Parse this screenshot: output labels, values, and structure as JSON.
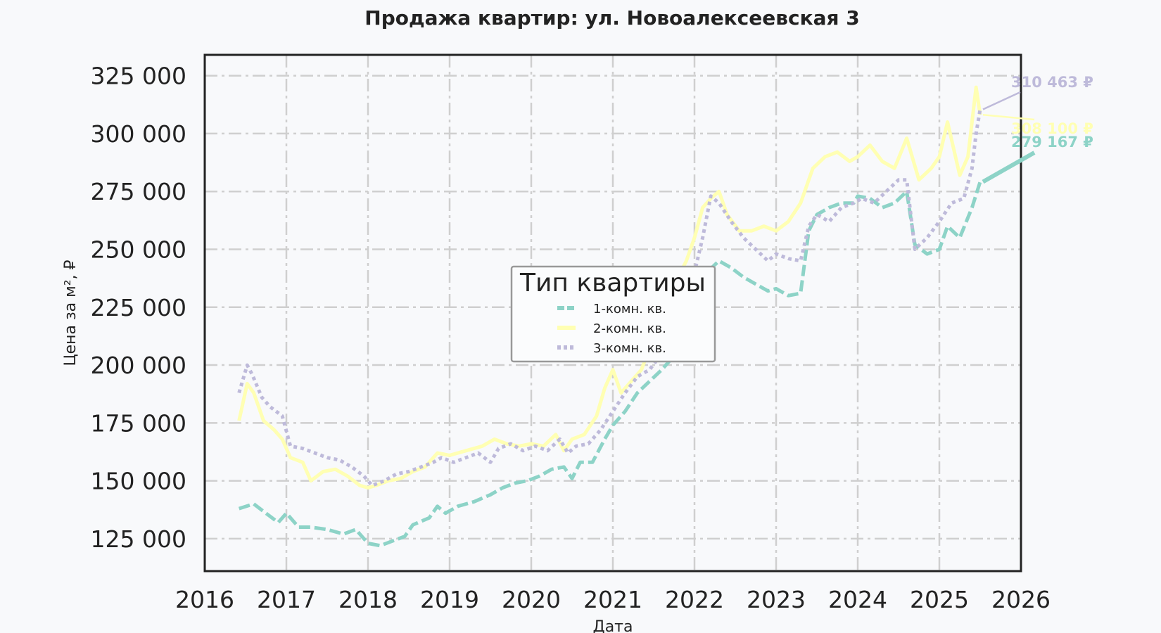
{
  "chart_data": {
    "type": "line",
    "title": "Продажа квартир: ул. Новоалексеевская 3",
    "xlabel": "Дата",
    "ylabel": "Цена за м², ₽",
    "xlim": [
      2016,
      2026
    ],
    "ylim": [
      111000,
      334000
    ],
    "x_ticks": [
      "2016",
      "2017",
      "2018",
      "2019",
      "2020",
      "2021",
      "2022",
      "2023",
      "2024",
      "2025",
      "2026"
    ],
    "y_ticks": [
      "125 000",
      "150 000",
      "175 000",
      "200 000",
      "225 000",
      "250 000",
      "275 000",
      "300 000",
      "325 000"
    ],
    "grid": true,
    "legend": {
      "title": "Тип квартиры",
      "position": "center",
      "entries": [
        "1-комн. кв.",
        "2-комн. кв.",
        "3-комн. кв."
      ]
    },
    "series": [
      {
        "name": "1-комн. кв.",
        "color": "#8dd3c7",
        "dash": "dashed",
        "end_label": "279 167 ₽",
        "x": [
          2016.42,
          2016.6,
          2016.75,
          2016.9,
          2017.0,
          2017.15,
          2017.3,
          2017.5,
          2017.7,
          2017.85,
          2018.0,
          2018.15,
          2018.3,
          2018.45,
          2018.55,
          2018.75,
          2018.85,
          2018.95,
          2019.1,
          2019.3,
          2019.5,
          2019.65,
          2019.8,
          2019.95,
          2020.1,
          2020.25,
          2020.4,
          2020.5,
          2020.6,
          2020.75,
          2020.9,
          2021.0,
          2021.15,
          2021.3,
          2021.45,
          2021.6,
          2021.75,
          2021.85,
          2021.95,
          2022.05,
          2022.15,
          2022.3,
          2022.45,
          2022.6,
          2022.75,
          2022.9,
          2023.0,
          2023.15,
          2023.3,
          2023.4,
          2023.5,
          2023.65,
          2023.8,
          2023.95,
          2024.0,
          2024.15,
          2024.3,
          2024.45,
          2024.6,
          2024.7,
          2024.85,
          2025.0,
          2025.1,
          2025.25,
          2025.4,
          2025.5
        ],
        "y": [
          138000,
          140000,
          136000,
          132000,
          136000,
          130000,
          130000,
          129000,
          127000,
          129000,
          123000,
          122000,
          124000,
          126000,
          131000,
          134000,
          139000,
          136000,
          139000,
          141000,
          144000,
          147000,
          149000,
          150000,
          152000,
          155000,
          156000,
          151000,
          158000,
          158000,
          168000,
          174000,
          180000,
          188000,
          193000,
          198000,
          204000,
          213000,
          222000,
          230000,
          240000,
          245000,
          242000,
          238000,
          235000,
          232000,
          233000,
          230000,
          231000,
          258000,
          265000,
          268000,
          270000,
          270000,
          273000,
          272000,
          268000,
          270000,
          275000,
          252000,
          248000,
          250000,
          260000,
          255000,
          268000,
          279167
        ]
      },
      {
        "name": "2-комн. кв.",
        "color": "#ffffb3",
        "dash": "solid",
        "end_label": "308 100 ₽",
        "x": [
          2016.42,
          2016.52,
          2016.6,
          2016.72,
          2016.85,
          2016.95,
          2017.05,
          2017.2,
          2017.3,
          2017.45,
          2017.6,
          2017.75,
          2017.9,
          2018.0,
          2018.1,
          2018.25,
          2018.4,
          2018.55,
          2018.7,
          2018.85,
          2019.0,
          2019.2,
          2019.4,
          2019.55,
          2019.7,
          2019.85,
          2020.0,
          2020.15,
          2020.3,
          2020.4,
          2020.5,
          2020.65,
          2020.8,
          2020.9,
          2021.0,
          2021.1,
          2021.2,
          2021.35,
          2021.5,
          2021.65,
          2021.8,
          2021.9,
          2022.0,
          2022.1,
          2022.2,
          2022.3,
          2022.4,
          2022.55,
          2022.7,
          2022.85,
          2023.0,
          2023.15,
          2023.3,
          2023.45,
          2023.6,
          2023.75,
          2023.9,
          2024.0,
          2024.15,
          2024.3,
          2024.45,
          2024.6,
          2024.75,
          2024.9,
          2025.0,
          2025.1,
          2025.25,
          2025.35,
          2025.45,
          2025.5
        ],
        "y": [
          176000,
          192000,
          188000,
          176000,
          172000,
          168000,
          160000,
          158000,
          150000,
          154000,
          155000,
          152000,
          148000,
          147000,
          148000,
          150000,
          151000,
          154000,
          156000,
          162000,
          161000,
          163000,
          165000,
          168000,
          166000,
          165000,
          166000,
          165000,
          170000,
          163000,
          168000,
          170000,
          178000,
          190000,
          198000,
          188000,
          192000,
          198000,
          212000,
          220000,
          238000,
          245000,
          255000,
          268000,
          272000,
          275000,
          265000,
          258000,
          258000,
          260000,
          258000,
          262000,
          270000,
          285000,
          290000,
          292000,
          288000,
          290000,
          295000,
          288000,
          285000,
          298000,
          280000,
          285000,
          290000,
          305000,
          282000,
          290000,
          320000,
          308100
        ]
      },
      {
        "name": "3-комн. кв.",
        "color": "#bebada",
        "dash": "dotted",
        "end_label": "310 463 ₽",
        "x": [
          2016.42,
          2016.52,
          2016.58,
          2016.7,
          2016.8,
          2016.95,
          2017.05,
          2017.2,
          2017.35,
          2017.5,
          2017.65,
          2017.8,
          2017.95,
          2018.05,
          2018.2,
          2018.35,
          2018.5,
          2018.65,
          2018.8,
          2018.9,
          2019.05,
          2019.2,
          2019.35,
          2019.5,
          2019.6,
          2019.75,
          2019.9,
          2020.05,
          2020.2,
          2020.35,
          2020.45,
          2020.55,
          2020.7,
          2020.85,
          2021.0,
          2021.15,
          2021.3,
          2021.45,
          2021.6,
          2021.75,
          2021.9,
          2022.0,
          2022.1,
          2022.2,
          2022.3,
          2022.45,
          2022.6,
          2022.75,
          2022.9,
          2023.0,
          2023.15,
          2023.3,
          2023.4,
          2023.5,
          2023.65,
          2023.8,
          2023.95,
          2024.05,
          2024.2,
          2024.35,
          2024.5,
          2024.6,
          2024.7,
          2024.85,
          2025.0,
          2025.15,
          2025.3,
          2025.4,
          2025.45,
          2025.5
        ],
        "y": [
          188000,
          200000,
          196000,
          186000,
          182000,
          178000,
          165000,
          164000,
          162000,
          160000,
          159000,
          156000,
          152000,
          148000,
          150000,
          153000,
          154000,
          156000,
          158000,
          160000,
          158000,
          160000,
          162000,
          158000,
          164000,
          166000,
          163000,
          165000,
          163000,
          168000,
          162000,
          165000,
          166000,
          172000,
          180000,
          188000,
          195000,
          198000,
          205000,
          215000,
          228000,
          240000,
          255000,
          273000,
          270000,
          262000,
          255000,
          250000,
          245000,
          248000,
          246000,
          245000,
          260000,
          265000,
          262000,
          268000,
          270000,
          272000,
          270000,
          275000,
          280000,
          280000,
          250000,
          255000,
          262000,
          270000,
          272000,
          285000,
          300000,
          310463
        ]
      }
    ]
  }
}
